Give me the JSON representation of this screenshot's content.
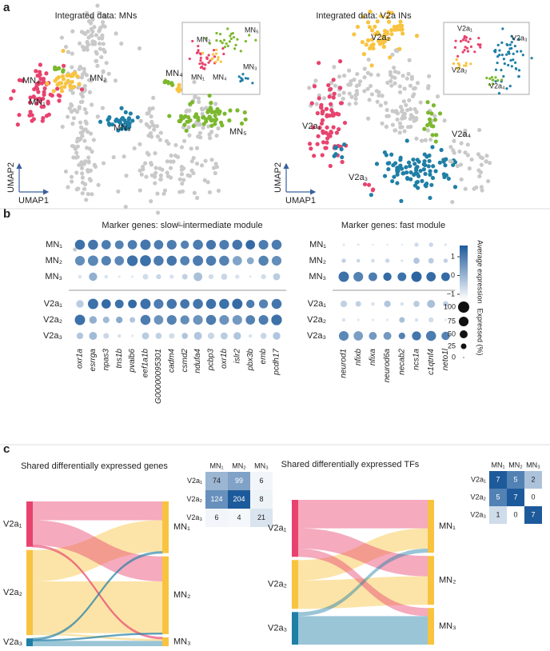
{
  "panel_labels": [
    "a",
    "b",
    "c"
  ],
  "umap": [
    {
      "title": "Integrated data: MNs",
      "x_label": "UMAP1",
      "y_label": "UMAP2",
      "labels": [
        "MN₄",
        "MN₂",
        "MN₁",
        "MN₄",
        "MN₃",
        "MN₅"
      ],
      "inset_labels": [
        "MN₂",
        "MN₅",
        "MN₃",
        "MN₁",
        "MN₄"
      ]
    },
    {
      "title": "Integrated data: V2a INs",
      "x_label": "UMAP1",
      "y_label": "UMAP2",
      "labels": [
        "V2a₂",
        "V2a₁",
        "V2a₄",
        "V2a₃"
      ],
      "inset_labels": [
        "V2a₁",
        "V2a₃",
        "V2a₂",
        "V2a₄"
      ]
    }
  ],
  "dotplot": {
    "rows": [
      "MN₁",
      "MN₂",
      "MN₃",
      "V2a₁",
      "V2a₂",
      "V2a₃"
    ],
    "panels": [
      {
        "title": "Marker genes: slow–intermediate module",
        "genes": [
          "oxr1a",
          "esrrga",
          "npas3",
          "tns1b",
          "pvalb6",
          "eef1a1b",
          "G00000095301",
          "cadm4",
          "csmd2",
          "ndufa4",
          "pcbp3",
          "oxr1b",
          "islr2",
          "pbx3b",
          "emb",
          "pcdh17"
        ],
        "expression": [
          [
            1.2,
            1.1,
            1.0,
            0.9,
            1.0,
            1.1,
            1.0,
            1.0,
            0.9,
            1.0,
            1.1,
            1.0,
            1.1,
            1.3,
            1.0,
            1.0
          ],
          [
            0.7,
            0.8,
            0.9,
            0.8,
            1.2,
            1.2,
            1.0,
            1.1,
            0.9,
            1.0,
            1.0,
            0.9,
            0.3,
            0.2,
            0.9,
            0.7
          ],
          [
            -0.8,
            0.1,
            -0.8,
            -0.9,
            -0.9,
            -0.7,
            -0.6,
            -0.8,
            -0.5,
            -0.2,
            -0.7,
            -0.6,
            -0.8,
            -0.9,
            -0.7,
            -0.4
          ],
          [
            -0.4,
            1.2,
            1.3,
            1.2,
            1.3,
            1.2,
            1.0,
            1.1,
            1.1,
            1.1,
            1.2,
            1.2,
            1.3,
            1.0,
            0.9,
            1.1
          ],
          [
            1.2,
            0.1,
            -0.1,
            0.2,
            -0.3,
            1.0,
            0.6,
            0.9,
            0.7,
            0.6,
            1.0,
            0.6,
            0.5,
            0.9,
            1.0,
            1.2
          ],
          [
            -0.3,
            -0.1,
            -0.6,
            -0.8,
            -0.9,
            -0.4,
            -0.5,
            -0.7,
            -0.3,
            -0.3,
            -0.6,
            -0.4,
            -0.3,
            -0.8,
            -0.6,
            -0.3
          ]
        ],
        "percent": [
          [
            80,
            80,
            70,
            60,
            70,
            85,
            70,
            75,
            55,
            80,
            75,
            75,
            80,
            70,
            75,
            80
          ],
          [
            75,
            85,
            75,
            70,
            90,
            95,
            80,
            80,
            70,
            85,
            80,
            80,
            70,
            40,
            80,
            75
          ],
          [
            10,
            55,
            10,
            5,
            5,
            25,
            20,
            15,
            25,
            60,
            20,
            30,
            15,
            5,
            20,
            40
          ],
          [
            45,
            85,
            70,
            60,
            60,
            85,
            75,
            80,
            70,
            80,
            80,
            80,
            85,
            55,
            65,
            80
          ],
          [
            85,
            45,
            35,
            35,
            25,
            80,
            70,
            75,
            65,
            75,
            80,
            75,
            75,
            70,
            75,
            90
          ],
          [
            35,
            50,
            25,
            10,
            5,
            40,
            30,
            25,
            30,
            50,
            35,
            40,
            45,
            10,
            30,
            45
          ]
        ]
      },
      {
        "title": "Marker genes: fast module",
        "genes": [
          "neurod1",
          "nfixb",
          "nfixa",
          "neurod6a",
          "necab2",
          "ncs1a",
          "c1qtnf4",
          "neto1l"
        ],
        "expression": [
          [
            -0.9,
            -0.9,
            -0.9,
            -0.9,
            -0.9,
            -0.7,
            -0.6,
            -0.8
          ],
          [
            -0.5,
            -0.6,
            -0.7,
            -0.6,
            -0.8,
            -0.3,
            -0.4,
            -0.5
          ],
          [
            1.2,
            0.9,
            1.0,
            1.3,
            1.2,
            1.4,
            1.3,
            1.3
          ],
          [
            -0.5,
            -0.5,
            -0.8,
            -0.3,
            -0.8,
            -0.4,
            -0.2,
            -0.5
          ],
          [
            -0.8,
            -0.9,
            -0.9,
            -0.9,
            -0.2,
            -0.8,
            -0.7,
            -0.9
          ],
          [
            0.8,
            0.4,
            0.5,
            0.5,
            0.9,
            1.1,
            1.0,
            0.9
          ]
        ],
        "percent": [
          [
            5,
            5,
            3,
            3,
            3,
            15,
            15,
            5
          ],
          [
            15,
            10,
            10,
            15,
            5,
            30,
            25,
            15
          ],
          [
            85,
            75,
            60,
            55,
            60,
            85,
            70,
            60
          ],
          [
            35,
            25,
            10,
            35,
            10,
            30,
            50,
            25
          ],
          [
            10,
            5,
            5,
            5,
            25,
            10,
            20,
            5
          ],
          [
            75,
            70,
            50,
            50,
            35,
            65,
            80,
            55
          ]
        ]
      }
    ],
    "color_label": "Average expression",
    "color_range": [
      -1.3,
      1.6
    ],
    "color_ticks": [
      1,
      0,
      {
        "value": -1,
        "label": "−1"
      }
    ],
    "size_label": "Expressed (%)",
    "size_ticks": [
      100,
      75,
      50,
      25,
      0
    ]
  },
  "sankey": [
    {
      "title": "Shared differentially expressed genes",
      "rows": [
        "V2a₁",
        "V2a₂",
        "V2a₃"
      ],
      "cols": [
        "MN₁",
        "MN₂",
        "MN₃"
      ],
      "matrix": [
        [
          74,
          99,
          6
        ],
        [
          124,
          204,
          8
        ],
        [
          6,
          4,
          21
        ]
      ]
    },
    {
      "title": "Shared differentially expressed TFs",
      "rows": [
        "V2a₁",
        "V2a₂",
        "V2a₃"
      ],
      "cols": [
        "MN₁",
        "MN₂",
        "MN₃"
      ],
      "matrix": [
        [
          7,
          5,
          2
        ],
        [
          5,
          7,
          0
        ],
        [
          1,
          0,
          7
        ]
      ]
    }
  ]
}
